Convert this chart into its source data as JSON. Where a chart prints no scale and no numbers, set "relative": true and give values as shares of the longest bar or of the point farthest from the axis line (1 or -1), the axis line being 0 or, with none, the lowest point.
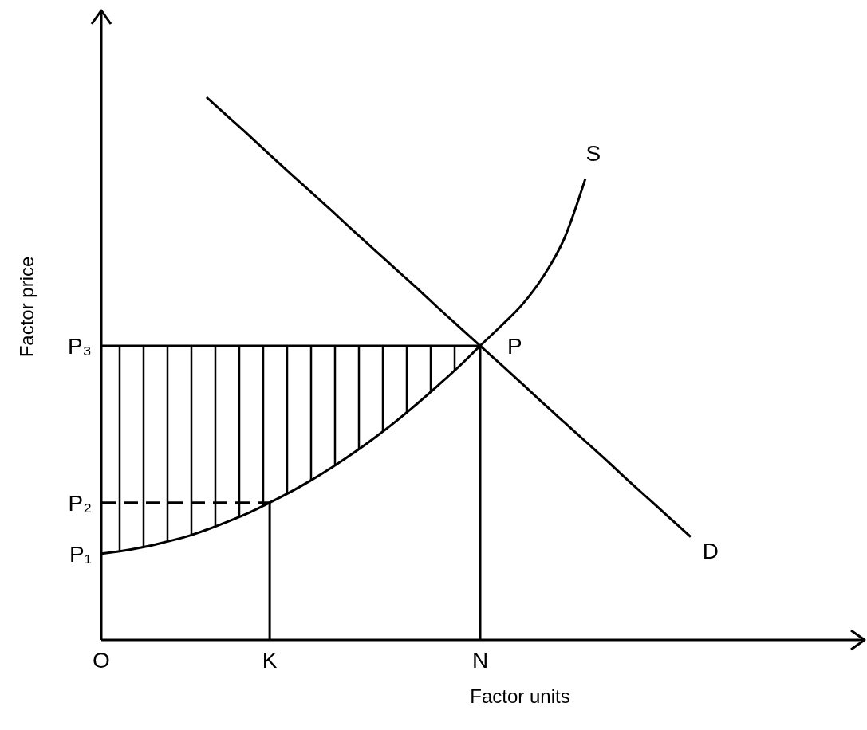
{
  "chart_data": {
    "type": "line",
    "relative": true,
    "xlabel": "Factor units",
    "ylabel": "Factor price",
    "categories": [
      "O",
      null,
      null,
      null,
      null,
      null,
      null,
      null,
      "K",
      null,
      null,
      null,
      null,
      null,
      null,
      null,
      null,
      null,
      "N",
      null,
      null,
      null,
      null,
      null,
      null,
      null,
      null,
      null,
      null,
      null,
      null,
      null,
      null,
      null,
      null,
      null,
      null
    ],
    "series": [
      {
        "name": "D",
        "color": "#000000",
        "values": [
          null,
          null,
          null,
          null,
          null,
          1,
          0.965,
          0.93,
          0.894,
          0.859,
          0.824,
          0.789,
          0.753,
          0.718,
          0.683,
          0.648,
          0.612,
          0.577,
          0.542,
          0.507,
          0.472,
          0.436,
          0.401,
          0.366,
          0.331,
          0.295,
          0.26,
          0.225,
          0.19,
          null,
          null,
          null,
          null,
          null,
          null,
          null,
          null
        ]
      },
      {
        "name": "S",
        "color": "#000000",
        "values": [
          0.159,
          0.164,
          0.171,
          0.18,
          0.19,
          0.203,
          0.218,
          0.234,
          0.253,
          0.273,
          0.295,
          0.319,
          0.345,
          0.373,
          0.403,
          0.435,
          0.469,
          0.504,
          0.542,
          0.579,
          0.618,
          0.67,
          0.74,
          0.85,
          null,
          null,
          null,
          null,
          null,
          null,
          null,
          null,
          null,
          null,
          null,
          null,
          null
        ]
      },
      {
        "color": "#000000",
        "values": [
          0.542,
          0.542,
          0.542,
          0.542,
          0.542,
          0.542,
          0.542,
          0.542,
          0.542,
          0.542,
          0.542,
          0.542,
          0.542,
          0.542,
          0.542,
          0.542,
          0.542,
          0.542,
          0.542,
          null,
          null,
          null,
          null,
          null,
          null,
          null,
          null,
          null,
          null,
          null,
          null,
          null,
          null,
          null,
          null,
          null,
          null
        ],
        "lower": [
          0.159,
          0.164,
          0.171,
          0.18,
          0.19,
          0.203,
          0.218,
          0.234,
          0.253,
          0.273,
          0.295,
          0.319,
          0.345,
          0.373,
          0.403,
          0.435,
          0.469,
          0.504,
          0.542,
          null,
          null,
          null,
          null,
          null,
          null,
          null,
          null,
          null,
          null,
          null,
          null,
          null,
          null,
          null,
          null,
          null,
          null
        ],
        "upper": [
          0.542,
          0.542,
          0.542,
          0.542,
          0.542,
          0.542,
          0.542,
          0.542,
          0.542,
          0.542,
          0.542,
          0.542,
          0.542,
          0.542,
          0.542,
          0.542,
          0.542,
          0.542,
          0.542,
          null,
          null,
          null,
          null,
          null,
          null,
          null,
          null,
          null,
          null,
          null,
          null,
          null,
          null,
          null,
          null,
          null,
          null
        ]
      },
      {
        "color": "#000000",
        "line_style": "dashed",
        "values": [
          0.253,
          0.253,
          0.253,
          0.253,
          0.253,
          0.253,
          0.253,
          0.253,
          0.253,
          null,
          null,
          null,
          null,
          null,
          null,
          null,
          null,
          null,
          null,
          null,
          null,
          null,
          null,
          null,
          null,
          null,
          null,
          null,
          null,
          null,
          null,
          null,
          null,
          null,
          null,
          null,
          null
        ]
      },
      {
        "color": "#000000",
        "x": [
          "K",
          "K"
        ],
        "values": [
          0,
          0.253
        ]
      },
      {
        "color": "#000000",
        "x": [
          "N",
          "N"
        ],
        "values": [
          0,
          0.542
        ]
      }
    ],
    "annotations": [
      {
        "text": "P",
        "x": "N",
        "y": 0.542
      },
      {
        "text": "P₁",
        "x": "O",
        "y": 0.159
      },
      {
        "text": "P₂",
        "x": "O",
        "y": 0.253
      },
      {
        "text": "P₃",
        "x": "O",
        "y": 0.542
      }
    ]
  }
}
